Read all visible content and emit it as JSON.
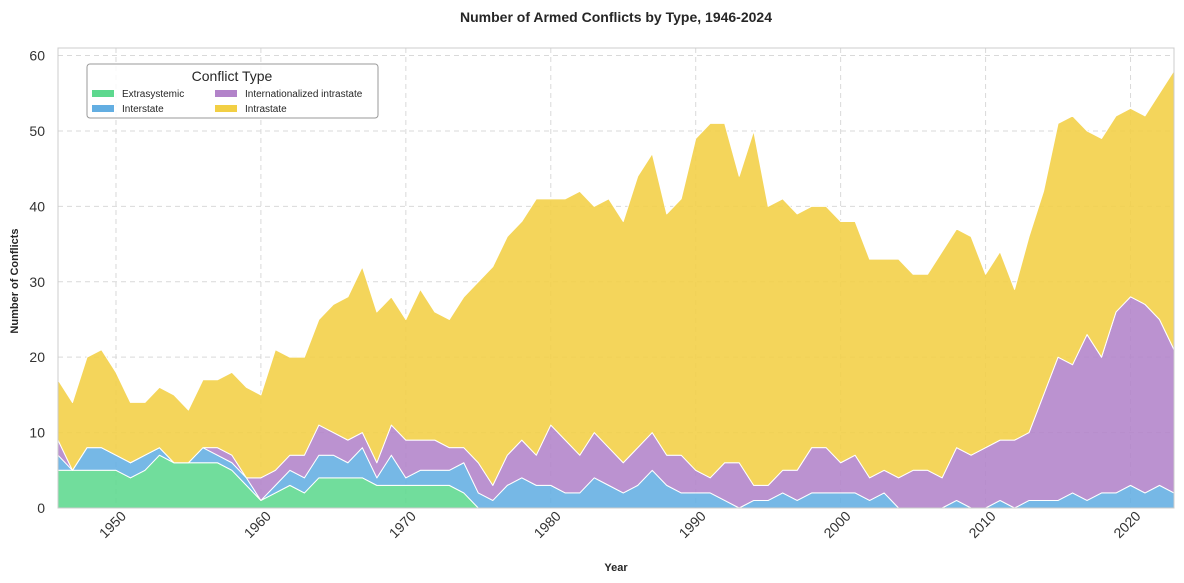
{
  "chart_data": {
    "type": "area",
    "stacked": true,
    "title": "Number of Armed Conflicts by Type, 1946-2024",
    "xlabel": "Year",
    "ylabel": "Number of Conflicts",
    "xlim": [
      1946,
      2023
    ],
    "ylim": [
      0,
      61
    ],
    "x_ticks": [
      1950,
      1960,
      1970,
      1980,
      1990,
      2000,
      2010,
      2020
    ],
    "y_ticks": [
      0,
      10,
      20,
      30,
      40,
      50,
      60
    ],
    "grid": true,
    "legend": {
      "title": "Conflict Type",
      "placement": "upper-left",
      "columns": 2
    },
    "x": [
      1946,
      1947,
      1948,
      1949,
      1950,
      1951,
      1952,
      1953,
      1954,
      1955,
      1956,
      1957,
      1958,
      1959,
      1960,
      1961,
      1962,
      1963,
      1964,
      1965,
      1966,
      1967,
      1968,
      1969,
      1970,
      1971,
      1972,
      1973,
      1974,
      1975,
      1976,
      1977,
      1978,
      1979,
      1980,
      1981,
      1982,
      1983,
      1984,
      1985,
      1986,
      1987,
      1988,
      1989,
      1990,
      1991,
      1992,
      1993,
      1994,
      1995,
      1996,
      1997,
      1998,
      1999,
      2000,
      2001,
      2002,
      2003,
      2004,
      2005,
      2006,
      2007,
      2008,
      2009,
      2010,
      2011,
      2012,
      2013,
      2014,
      2015,
      2016,
      2017,
      2018,
      2019,
      2020,
      2021,
      2022,
      2023
    ],
    "series": [
      {
        "name": "Extrasystemic",
        "color": "#5dd88e",
        "values": [
          5,
          5,
          5,
          5,
          5,
          4,
          5,
          7,
          6,
          6,
          6,
          6,
          5,
          3,
          1,
          2,
          3,
          2,
          4,
          4,
          4,
          4,
          3,
          3,
          3,
          3,
          3,
          3,
          2,
          0,
          0,
          0,
          0,
          0,
          0,
          0,
          0,
          0,
          0,
          0,
          0,
          0,
          0,
          0,
          0,
          0,
          0,
          0,
          0,
          0,
          0,
          0,
          0,
          0,
          0,
          0,
          0,
          0,
          0,
          0,
          0,
          0,
          0,
          0,
          0,
          0,
          0,
          0,
          0,
          0,
          0,
          0,
          0,
          0,
          0,
          0,
          0,
          0
        ]
      },
      {
        "name": "Interstate",
        "color": "#63aee2",
        "values": [
          2,
          0,
          3,
          3,
          2,
          2,
          2,
          1,
          0,
          0,
          2,
          1,
          1,
          1,
          0,
          1,
          2,
          2,
          3,
          3,
          2,
          4,
          1,
          4,
          1,
          2,
          2,
          2,
          4,
          2,
          1,
          3,
          4,
          3,
          3,
          2,
          2,
          4,
          3,
          2,
          3,
          5,
          3,
          2,
          2,
          2,
          1,
          0,
          1,
          1,
          2,
          1,
          2,
          2,
          2,
          2,
          1,
          2,
          0,
          0,
          0,
          0,
          1,
          0,
          0,
          1,
          0,
          1,
          1,
          1,
          2,
          1,
          2,
          2,
          3,
          2,
          3,
          2
        ]
      },
      {
        "name": "Internationalized intrastate",
        "color": "#b283c9",
        "values": [
          2,
          0,
          0,
          0,
          0,
          0,
          0,
          0,
          0,
          0,
          0,
          1,
          1,
          0,
          3,
          2,
          2,
          3,
          4,
          3,
          3,
          2,
          2,
          4,
          5,
          4,
          4,
          3,
          2,
          4,
          2,
          4,
          5,
          4,
          8,
          7,
          5,
          6,
          5,
          4,
          5,
          5,
          4,
          5,
          3,
          2,
          5,
          6,
          2,
          2,
          3,
          4,
          6,
          6,
          4,
          5,
          3,
          3,
          4,
          5,
          5,
          4,
          7,
          7,
          8,
          8,
          9,
          9,
          14,
          19,
          17,
          22,
          18,
          24,
          25,
          25,
          22,
          19
        ]
      },
      {
        "name": "Intrastate",
        "color": "#f2cf44",
        "values": [
          8,
          9,
          12,
          13,
          11,
          8,
          7,
          8,
          9,
          7,
          9,
          9,
          11,
          12,
          11,
          16,
          13,
          13,
          14,
          17,
          19,
          22,
          20,
          17,
          16,
          20,
          17,
          17,
          20,
          24,
          29,
          29,
          29,
          34,
          30,
          32,
          35,
          30,
          33,
          32,
          36,
          37,
          32,
          34,
          44,
          47,
          45,
          38,
          47,
          37,
          36,
          34,
          32,
          32,
          32,
          31,
          29,
          28,
          29,
          26,
          26,
          30,
          29,
          29,
          23,
          25,
          20,
          26,
          27,
          31,
          33,
          27,
          29,
          26,
          25,
          25,
          30,
          37
        ]
      }
    ]
  }
}
